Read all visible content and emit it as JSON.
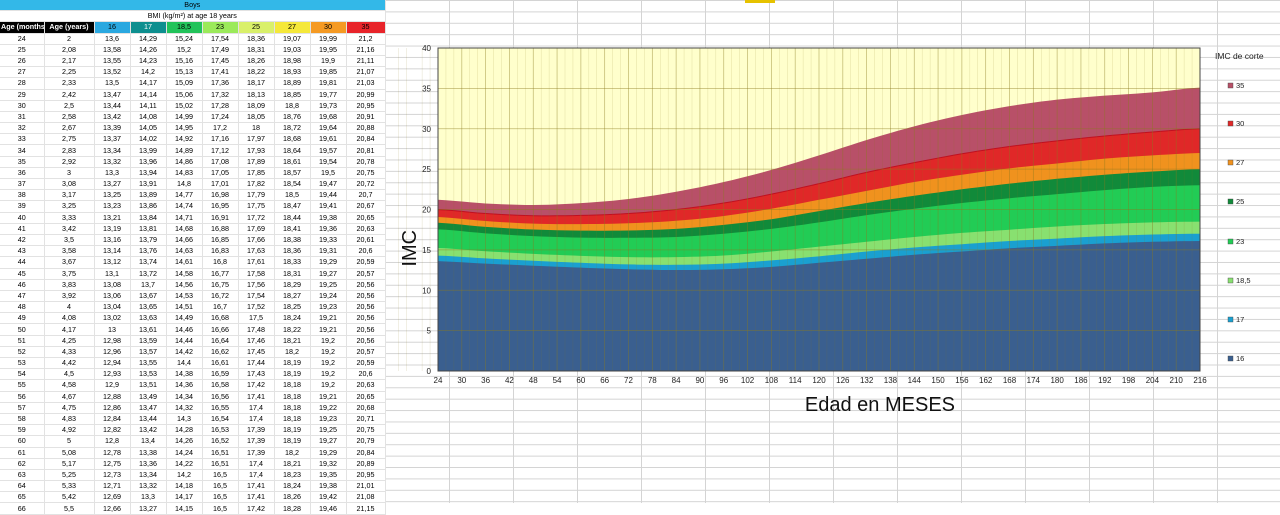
{
  "table": {
    "title": "Boys",
    "subtitle": "BMI (kg/m²) at age 18 years",
    "headers": [
      "Age (months)",
      "Age (years)",
      "16",
      "17",
      "18,5",
      "23",
      "25",
      "27",
      "30",
      "35"
    ],
    "header_colors": [
      "#000000",
      "#000000",
      "#2aa8e0",
      "#0e8f8f",
      "#22c35a",
      "#9bea5a",
      "#d9f06a",
      "#f5e83a",
      "#f59a23",
      "#e8242a"
    ],
    "rows": [
      [
        "24",
        "2",
        "13,6",
        "14,29",
        "15,24",
        "17,54",
        "18,36",
        "19,07",
        "19,99",
        "21,2"
      ],
      [
        "25",
        "2,08",
        "13,58",
        "14,26",
        "15,2",
        "17,49",
        "18,31",
        "19,03",
        "19,95",
        "21,16"
      ],
      [
        "26",
        "2,17",
        "13,55",
        "14,23",
        "15,16",
        "17,45",
        "18,26",
        "18,98",
        "19,9",
        "21,11"
      ],
      [
        "27",
        "2,25",
        "13,52",
        "14,2",
        "15,13",
        "17,41",
        "18,22",
        "18,93",
        "19,85",
        "21,07"
      ],
      [
        "28",
        "2,33",
        "13,5",
        "14,17",
        "15,09",
        "17,36",
        "18,17",
        "18,89",
        "19,81",
        "21,03"
      ],
      [
        "29",
        "2,42",
        "13,47",
        "14,14",
        "15,06",
        "17,32",
        "18,13",
        "18,85",
        "19,77",
        "20,99"
      ],
      [
        "30",
        "2,5",
        "13,44",
        "14,11",
        "15,02",
        "17,28",
        "18,09",
        "18,8",
        "19,73",
        "20,95"
      ],
      [
        "31",
        "2,58",
        "13,42",
        "14,08",
        "14,99",
        "17,24",
        "18,05",
        "18,76",
        "19,68",
        "20,91"
      ],
      [
        "32",
        "2,67",
        "13,39",
        "14,05",
        "14,95",
        "17,2",
        "18",
        "18,72",
        "19,64",
        "20,88"
      ],
      [
        "33",
        "2,75",
        "13,37",
        "14,02",
        "14,92",
        "17,16",
        "17,97",
        "18,68",
        "19,61",
        "20,84"
      ],
      [
        "34",
        "2,83",
        "13,34",
        "13,99",
        "14,89",
        "17,12",
        "17,93",
        "18,64",
        "19,57",
        "20,81"
      ],
      [
        "35",
        "2,92",
        "13,32",
        "13,96",
        "14,86",
        "17,08",
        "17,89",
        "18,61",
        "19,54",
        "20,78"
      ],
      [
        "36",
        "3",
        "13,3",
        "13,94",
        "14,83",
        "17,05",
        "17,85",
        "18,57",
        "19,5",
        "20,75"
      ],
      [
        "37",
        "3,08",
        "13,27",
        "13,91",
        "14,8",
        "17,01",
        "17,82",
        "18,54",
        "19,47",
        "20,72"
      ],
      [
        "38",
        "3,17",
        "13,25",
        "13,89",
        "14,77",
        "16,98",
        "17,79",
        "18,5",
        "19,44",
        "20,7"
      ],
      [
        "39",
        "3,25",
        "13,23",
        "13,86",
        "14,74",
        "16,95",
        "17,75",
        "18,47",
        "19,41",
        "20,67"
      ],
      [
        "40",
        "3,33",
        "13,21",
        "13,84",
        "14,71",
        "16,91",
        "17,72",
        "18,44",
        "19,38",
        "20,65"
      ],
      [
        "41",
        "3,42",
        "13,19",
        "13,81",
        "14,68",
        "16,88",
        "17,69",
        "18,41",
        "19,36",
        "20,63"
      ],
      [
        "42",
        "3,5",
        "13,16",
        "13,79",
        "14,66",
        "16,85",
        "17,66",
        "18,38",
        "19,33",
        "20,61"
      ],
      [
        "43",
        "3,58",
        "13,14",
        "13,76",
        "14,63",
        "16,83",
        "17,63",
        "18,36",
        "19,31",
        "20,6"
      ],
      [
        "44",
        "3,67",
        "13,12",
        "13,74",
        "14,61",
        "16,8",
        "17,61",
        "18,33",
        "19,29",
        "20,59"
      ],
      [
        "45",
        "3,75",
        "13,1",
        "13,72",
        "14,58",
        "16,77",
        "17,58",
        "18,31",
        "19,27",
        "20,57"
      ],
      [
        "46",
        "3,83",
        "13,08",
        "13,7",
        "14,56",
        "16,75",
        "17,56",
        "18,29",
        "19,25",
        "20,56"
      ],
      [
        "47",
        "3,92",
        "13,06",
        "13,67",
        "14,53",
        "16,72",
        "17,54",
        "18,27",
        "19,24",
        "20,56"
      ],
      [
        "48",
        "4",
        "13,04",
        "13,65",
        "14,51",
        "16,7",
        "17,52",
        "18,25",
        "19,23",
        "20,56"
      ],
      [
        "49",
        "4,08",
        "13,02",
        "13,63",
        "14,49",
        "16,68",
        "17,5",
        "18,24",
        "19,21",
        "20,56"
      ],
      [
        "50",
        "4,17",
        "13",
        "13,61",
        "14,46",
        "16,66",
        "17,48",
        "18,22",
        "19,21",
        "20,56"
      ],
      [
        "51",
        "4,25",
        "12,98",
        "13,59",
        "14,44",
        "16,64",
        "17,46",
        "18,21",
        "19,2",
        "20,56"
      ],
      [
        "52",
        "4,33",
        "12,96",
        "13,57",
        "14,42",
        "16,62",
        "17,45",
        "18,2",
        "19,2",
        "20,57"
      ],
      [
        "53",
        "4,42",
        "12,94",
        "13,55",
        "14,4",
        "16,61",
        "17,44",
        "18,19",
        "19,2",
        "20,59"
      ],
      [
        "54",
        "4,5",
        "12,93",
        "13,53",
        "14,38",
        "16,59",
        "17,43",
        "18,19",
        "19,2",
        "20,6"
      ],
      [
        "55",
        "4,58",
        "12,9",
        "13,51",
        "14,36",
        "16,58",
        "17,42",
        "18,18",
        "19,2",
        "20,63"
      ],
      [
        "56",
        "4,67",
        "12,88",
        "13,49",
        "14,34",
        "16,56",
        "17,41",
        "18,18",
        "19,21",
        "20,65"
      ],
      [
        "57",
        "4,75",
        "12,86",
        "13,47",
        "14,32",
        "16,55",
        "17,4",
        "18,18",
        "19,22",
        "20,68"
      ],
      [
        "58",
        "4,83",
        "12,84",
        "13,44",
        "14,3",
        "16,54",
        "17,4",
        "18,18",
        "19,23",
        "20,71"
      ],
      [
        "59",
        "4,92",
        "12,82",
        "13,42",
        "14,28",
        "16,53",
        "17,39",
        "18,19",
        "19,25",
        "20,75"
      ],
      [
        "60",
        "5",
        "12,8",
        "13,4",
        "14,26",
        "16,52",
        "17,39",
        "18,19",
        "19,27",
        "20,79"
      ],
      [
        "61",
        "5,08",
        "12,78",
        "13,38",
        "14,24",
        "16,51",
        "17,39",
        "18,2",
        "19,29",
        "20,84"
      ],
      [
        "62",
        "5,17",
        "12,75",
        "13,36",
        "14,22",
        "16,51",
        "17,4",
        "18,21",
        "19,32",
        "20,89"
      ],
      [
        "63",
        "5,25",
        "12,73",
        "13,34",
        "14,2",
        "16,5",
        "17,4",
        "18,23",
        "19,35",
        "20,95"
      ],
      [
        "64",
        "5,33",
        "12,71",
        "13,32",
        "14,18",
        "16,5",
        "17,41",
        "18,24",
        "19,38",
        "21,01"
      ],
      [
        "65",
        "5,42",
        "12,69",
        "13,3",
        "14,17",
        "16,5",
        "17,41",
        "18,26",
        "19,42",
        "21,08"
      ],
      [
        "66",
        "5,5",
        "12,66",
        "13,27",
        "14,15",
        "16,5",
        "17,42",
        "18,28",
        "19,46",
        "21,15"
      ]
    ]
  },
  "chart_data": {
    "type": "area",
    "xlabel": "Edad en  MESES",
    "ylabel": "IMC",
    "xlim": [
      24,
      216
    ],
    "ylim": [
      0,
      40
    ],
    "xticks": [
      24,
      30,
      36,
      42,
      48,
      54,
      60,
      66,
      72,
      78,
      84,
      90,
      96,
      102,
      108,
      114,
      120,
      126,
      132,
      138,
      144,
      150,
      156,
      162,
      168,
      174,
      180,
      186,
      192,
      198,
      204,
      210,
      216
    ],
    "yticks": [
      0,
      5,
      10,
      15,
      20,
      25,
      30,
      35,
      40
    ],
    "grid": true,
    "legend_title": "IMC de corte",
    "legend_position": "right",
    "x": [
      24,
      36,
      48,
      60,
      72,
      84,
      96,
      108,
      120,
      132,
      144,
      156,
      168,
      180,
      192,
      204,
      216
    ],
    "series": [
      {
        "name": "16",
        "color": "#3a5f8f",
        "values": [
          13.6,
          13.3,
          13.04,
          12.8,
          12.6,
          12.5,
          12.6,
          12.9,
          13.4,
          13.9,
          14.4,
          14.8,
          15.2,
          15.5,
          15.8,
          16.0,
          16.1
        ]
      },
      {
        "name": "17",
        "color": "#1aa0d0",
        "values": [
          14.29,
          13.94,
          13.65,
          13.4,
          13.2,
          13.15,
          13.3,
          13.7,
          14.2,
          14.8,
          15.3,
          15.7,
          16.1,
          16.4,
          16.7,
          16.9,
          17.0
        ]
      },
      {
        "name": "18,5",
        "color": "#88e070",
        "values": [
          15.24,
          14.83,
          14.51,
          14.26,
          14.1,
          14.1,
          14.3,
          14.8,
          15.4,
          16.0,
          16.6,
          17.1,
          17.5,
          17.9,
          18.2,
          18.4,
          18.5
        ]
      },
      {
        "name": "23",
        "color": "#22cc55",
        "values": [
          17.54,
          17.05,
          16.7,
          16.52,
          16.5,
          16.6,
          17.0,
          17.6,
          18.4,
          19.3,
          20.1,
          20.8,
          21.4,
          21.9,
          22.4,
          22.8,
          23.0
        ]
      },
      {
        "name": "25",
        "color": "#118a3a",
        "values": [
          18.36,
          17.85,
          17.52,
          17.39,
          17.4,
          17.6,
          18.1,
          18.8,
          19.8,
          20.8,
          21.7,
          22.5,
          23.2,
          23.8,
          24.3,
          24.7,
          25.0
        ]
      },
      {
        "name": "27",
        "color": "#f0921e",
        "values": [
          19.07,
          18.57,
          18.25,
          18.19,
          18.3,
          18.6,
          19.2,
          20.1,
          21.2,
          22.3,
          23.4,
          24.3,
          25.1,
          25.7,
          26.3,
          26.7,
          27.0
        ]
      },
      {
        "name": "30",
        "color": "#e02828",
        "values": [
          19.99,
          19.5,
          19.23,
          19.27,
          19.5,
          20.0,
          20.8,
          21.9,
          23.2,
          24.6,
          25.8,
          26.9,
          27.8,
          28.5,
          29.1,
          29.6,
          30.0
        ]
      },
      {
        "name": "35",
        "color": "#b85068",
        "values": [
          21.2,
          20.75,
          20.56,
          20.79,
          21.3,
          22.2,
          23.4,
          24.9,
          26.7,
          28.6,
          30.3,
          31.7,
          32.8,
          33.6,
          34.1,
          34.5,
          35.1
        ]
      }
    ]
  }
}
